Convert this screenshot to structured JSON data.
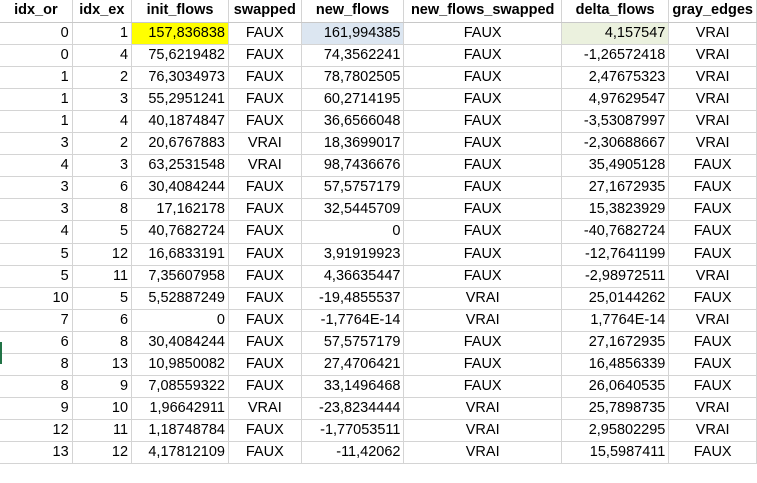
{
  "sheet": {
    "headers": [
      "idx_or",
      "idx_ex",
      "init_flows",
      "swapped",
      "new_flows",
      "new_flows_swapped",
      "delta_flows",
      "gray_edges"
    ],
    "rows": [
      [
        "0",
        "1",
        "157,836838",
        "FAUX",
        "161,994385",
        "FAUX",
        "4,157547",
        "VRAI"
      ],
      [
        "0",
        "4",
        "75,6219482",
        "FAUX",
        "74,3562241",
        "FAUX",
        "-1,26572418",
        "VRAI"
      ],
      [
        "1",
        "2",
        "76,3034973",
        "FAUX",
        "78,7802505",
        "FAUX",
        "2,47675323",
        "VRAI"
      ],
      [
        "1",
        "3",
        "55,2951241",
        "FAUX",
        "60,2714195",
        "FAUX",
        "4,97629547",
        "VRAI"
      ],
      [
        "1",
        "4",
        "40,1874847",
        "FAUX",
        "36,6566048",
        "FAUX",
        "-3,53087997",
        "VRAI"
      ],
      [
        "3",
        "2",
        "20,6767883",
        "VRAI",
        "18,3699017",
        "FAUX",
        "-2,30688667",
        "VRAI"
      ],
      [
        "4",
        "3",
        "63,2531548",
        "VRAI",
        "98,7436676",
        "FAUX",
        "35,4905128",
        "FAUX"
      ],
      [
        "3",
        "6",
        "30,4084244",
        "FAUX",
        "57,5757179",
        "FAUX",
        "27,1672935",
        "FAUX"
      ],
      [
        "3",
        "8",
        "17,162178",
        "FAUX",
        "32,5445709",
        "FAUX",
        "15,3823929",
        "FAUX"
      ],
      [
        "4",
        "5",
        "40,7682724",
        "FAUX",
        "0",
        "FAUX",
        "-40,7682724",
        "FAUX"
      ],
      [
        "5",
        "12",
        "16,6833191",
        "FAUX",
        "3,91919923",
        "FAUX",
        "-12,7641199",
        "FAUX"
      ],
      [
        "5",
        "11",
        "7,35607958",
        "FAUX",
        "4,36635447",
        "FAUX",
        "-2,98972511",
        "VRAI"
      ],
      [
        "10",
        "5",
        "5,52887249",
        "FAUX",
        "-19,4855537",
        "VRAI",
        "25,0144262",
        "FAUX"
      ],
      [
        "7",
        "6",
        "0",
        "FAUX",
        "-1,7764E-14",
        "VRAI",
        "1,7764E-14",
        "VRAI"
      ],
      [
        "6",
        "8",
        "30,4084244",
        "FAUX",
        "57,5757179",
        "FAUX",
        "27,1672935",
        "FAUX"
      ],
      [
        "8",
        "13",
        "10,9850082",
        "FAUX",
        "27,4706421",
        "FAUX",
        "16,4856339",
        "FAUX"
      ],
      [
        "8",
        "9",
        "7,08559322",
        "FAUX",
        "33,1496468",
        "FAUX",
        "26,0640535",
        "FAUX"
      ],
      [
        "9",
        "10",
        "1,96642911",
        "VRAI",
        "-23,8234444",
        "VRAI",
        "25,7898735",
        "VRAI"
      ],
      [
        "12",
        "11",
        "1,18748784",
        "FAUX",
        "-1,77053511",
        "VRAI",
        "2,95802295",
        "VRAI"
      ],
      [
        "13",
        "12",
        "4,17812109",
        "FAUX",
        "-11,42062",
        "VRAI",
        "15,5987411",
        "FAUX"
      ]
    ],
    "highlights": {
      "init_flows_row0": "#ffff00",
      "new_flows_row0": "#dce6f1",
      "delta_flows_row0": "#ebf1de"
    },
    "gridline_color": "#d4d4d4"
  }
}
